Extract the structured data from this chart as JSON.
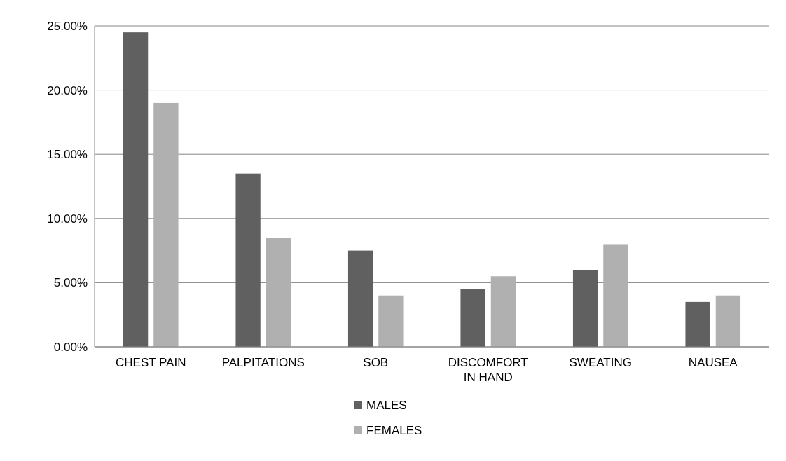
{
  "chart_data": {
    "type": "bar",
    "categories": [
      "CHEST PAIN",
      "PALPITATIONS",
      "SOB",
      "DISCOMFORT IN HAND",
      "SWEATING",
      "NAUSEA"
    ],
    "series": [
      {
        "name": "MALES",
        "color": "#606060",
        "values": [
          24.5,
          13.5,
          7.5,
          4.5,
          6,
          3.5
        ]
      },
      {
        "name": "FEMALES",
        "color": "#b0b0b0",
        "values": [
          19,
          8.5,
          4,
          5.5,
          8,
          4
        ]
      }
    ],
    "ylim": [
      0,
      25
    ],
    "yticks": [
      {
        "value": 0,
        "label": "0.00%"
      },
      {
        "value": 5,
        "label": "5.00%"
      },
      {
        "value": 10,
        "label": "10.00%"
      },
      {
        "value": 15,
        "label": "15.00%"
      },
      {
        "value": 20,
        "label": "20.00%"
      },
      {
        "value": 25,
        "label": "25.00%"
      }
    ],
    "grid": "y",
    "legend": "bottom"
  }
}
